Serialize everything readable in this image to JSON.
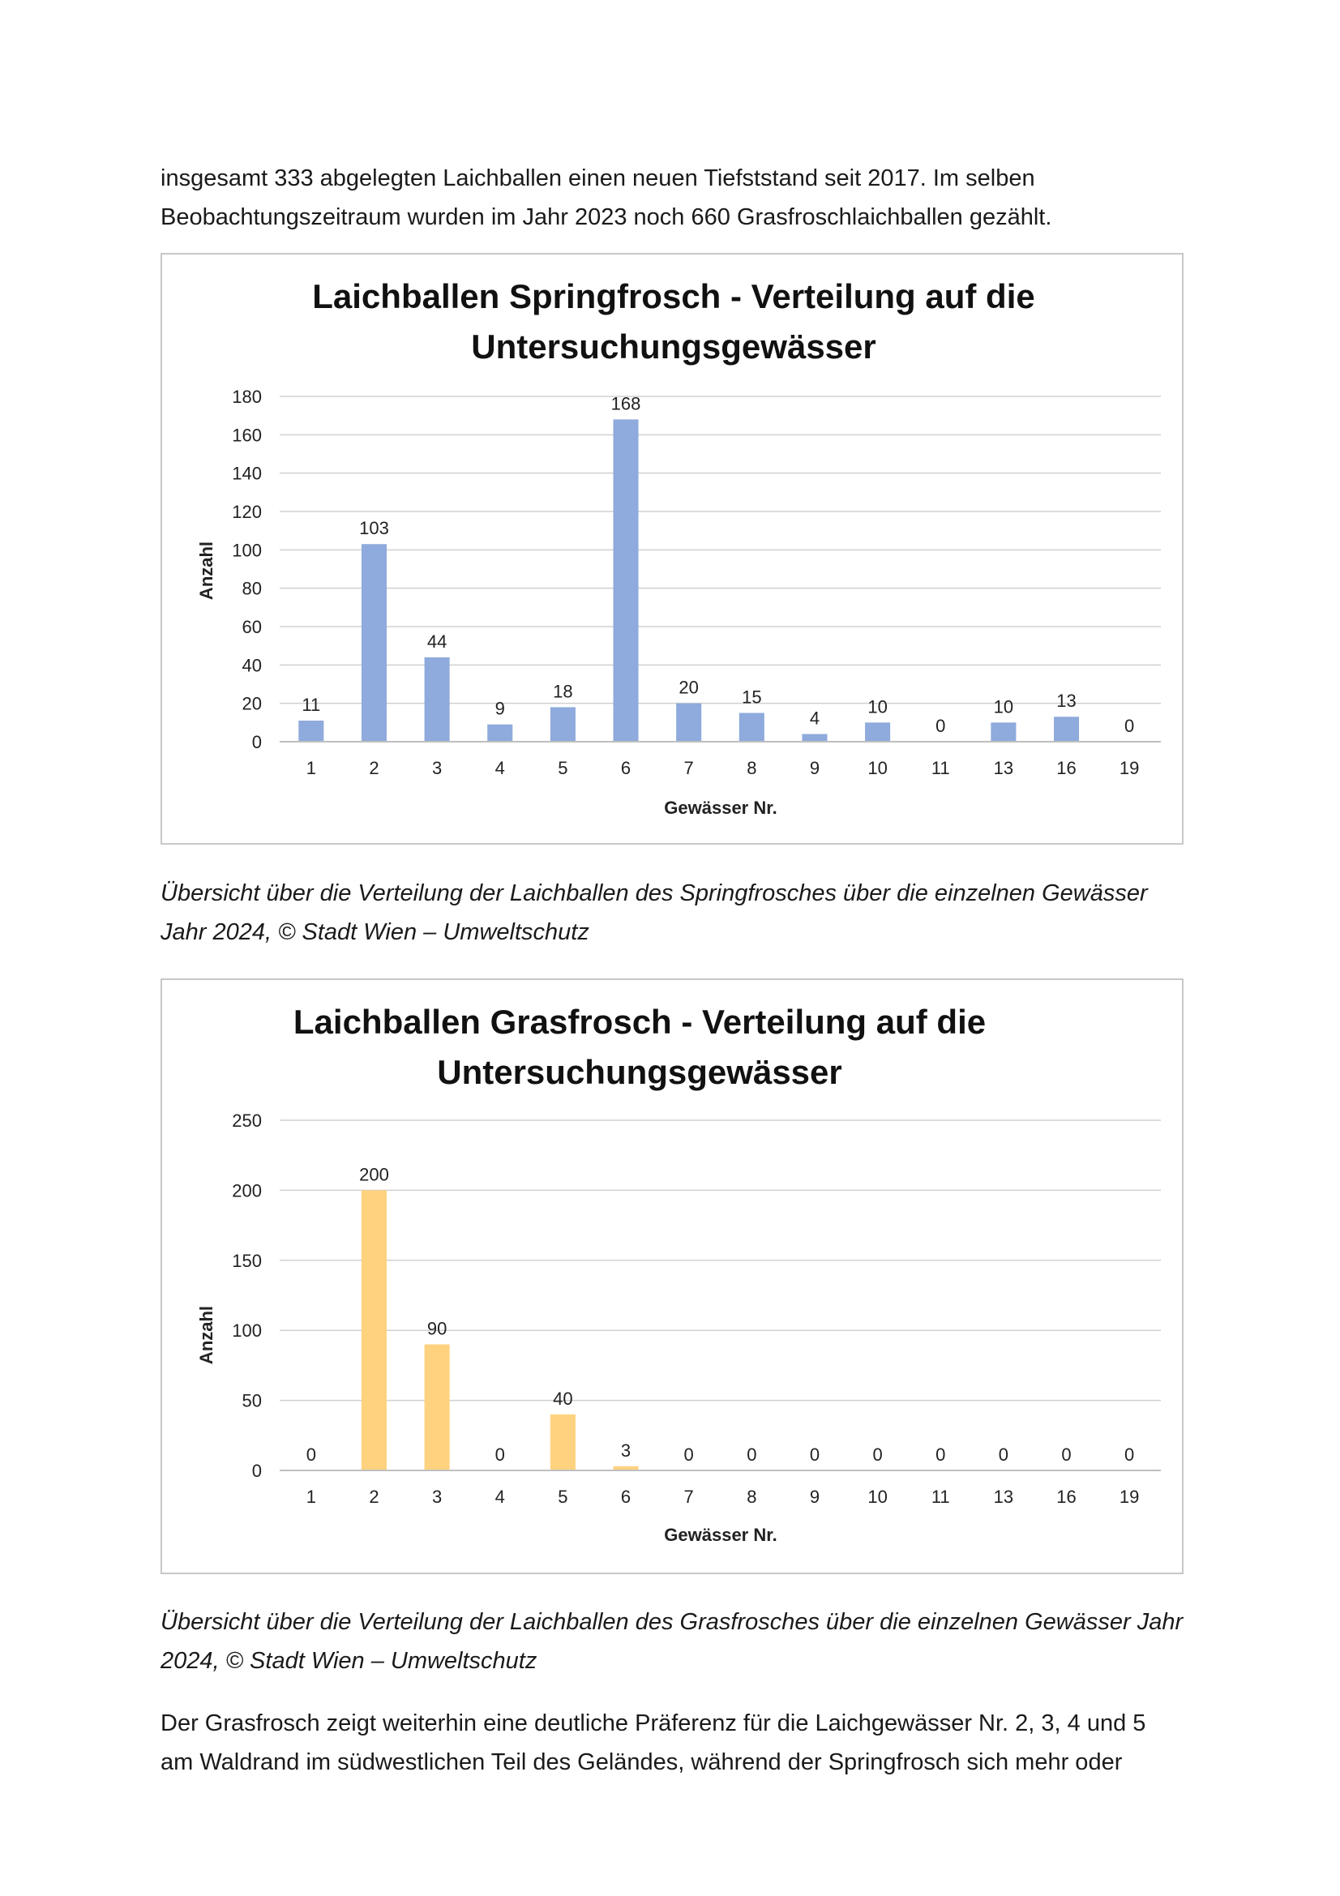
{
  "intro": {
    "line1": "insgesamt 333 abgelegten Laichballen einen neuen Tiefststand seit 2017. Im selben",
    "line2": "Beobachtungszeitraum wurden im Jahr 2023 noch 660 Grasfroschlaichballen gezählt."
  },
  "caption1": {
    "line1": "Übersicht über die Verteilung der Laichballen des Springfrosches über die einzelnen Gewässer",
    "line2": "Jahr 2024, © Stadt Wien – Umweltschutz"
  },
  "caption2": {
    "line1": "Übersicht über die Verteilung der Laichballen des Grasfrosches über die einzelnen Gewässer Jahr",
    "line2": "2024, © Stadt Wien – Umweltschutz"
  },
  "outro": {
    "line1": "Der Grasfrosch zeigt weiterhin eine deutliche Präferenz für die Laichgewässer Nr. 2, 3, 4 und 5",
    "line2": "am Waldrand im südwestlichen Teil des Geländes, während der Springfrosch sich mehr oder"
  },
  "chart_data": [
    {
      "type": "bar",
      "title_line1": "Laichballen Springfrosch - Verteilung auf die",
      "title_line2": "Untersuchungsgewässer",
      "xlabel": "Gewässer Nr.",
      "ylabel": "Anzahl",
      "categories": [
        "1",
        "2",
        "3",
        "4",
        "5",
        "6",
        "7",
        "8",
        "9",
        "10",
        "11",
        "13",
        "16",
        "19"
      ],
      "values": [
        11,
        103,
        44,
        9,
        18,
        168,
        20,
        15,
        4,
        10,
        0,
        10,
        13,
        0
      ],
      "ylim": [
        0,
        180
      ],
      "yticks": [
        0,
        20,
        40,
        60,
        80,
        100,
        120,
        140,
        160,
        180
      ],
      "grid": true,
      "bar_color": "#8faadc"
    },
    {
      "type": "bar",
      "title_line1": "Laichballen Grasfrosch - Verteilung auf die",
      "title_line2": "Untersuchungsgewässer",
      "xlabel": "Gewässer Nr.",
      "ylabel": "Anzahl",
      "categories": [
        "1",
        "2",
        "3",
        "4",
        "5",
        "6",
        "7",
        "8",
        "9",
        "10",
        "11",
        "13",
        "16",
        "19"
      ],
      "values": [
        0,
        200,
        90,
        0,
        40,
        3,
        0,
        0,
        0,
        0,
        0,
        0,
        0,
        0
      ],
      "ylim": [
        0,
        250
      ],
      "yticks": [
        0,
        50,
        100,
        150,
        200,
        250
      ],
      "grid": true,
      "bar_color": "#ffd27f"
    }
  ]
}
